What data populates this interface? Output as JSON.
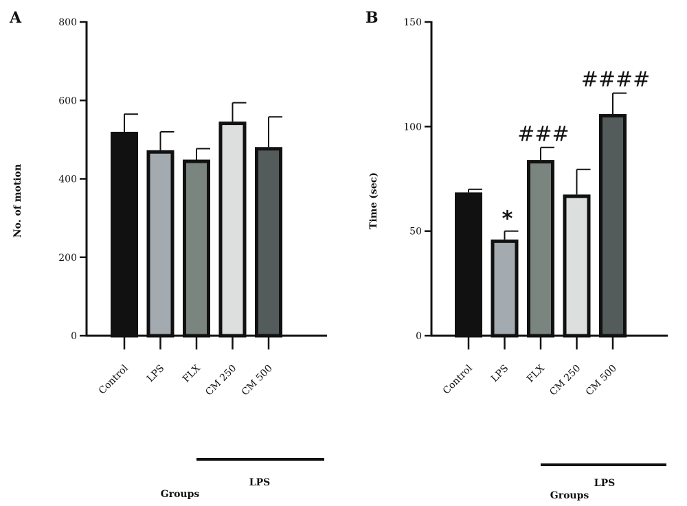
{
  "chart_data": [
    {
      "panel_label": "A",
      "type": "bar",
      "categories": [
        "Control",
        "LPS",
        "FLX",
        "CM 250",
        "CM 500"
      ],
      "values": [
        520,
        473,
        449,
        546,
        481
      ],
      "errors": [
        45,
        47,
        28,
        48,
        77
      ],
      "annotations": [
        "",
        "",
        "",
        "",
        ""
      ],
      "bar_colors": [
        "#111111",
        "#a3aab0",
        "#7a8580",
        "#dcdfdd",
        "#535b5b"
      ],
      "ylabel": "No. of motion",
      "xlabel": "Groups",
      "ylim": [
        0,
        800
      ],
      "yticks": [
        0,
        200,
        400,
        600,
        800
      ],
      "bracket_label": "LPS"
    },
    {
      "panel_label": "B",
      "type": "bar",
      "categories": [
        "Control",
        "LPS",
        "FLX",
        "CM 250",
        "CM 500"
      ],
      "values": [
        68.5,
        46,
        84,
        67.5,
        106
      ],
      "errors": [
        1.5,
        4,
        6,
        12,
        10
      ],
      "annotations": [
        "",
        "*",
        "###",
        "",
        "####"
      ],
      "bar_colors": [
        "#111111",
        "#a3aab0",
        "#7a8580",
        "#dcdfdd",
        "#535b5b"
      ],
      "ylabel": "Time (sec)",
      "xlabel": "Groups",
      "ylim": [
        0,
        150
      ],
      "yticks": [
        0,
        50,
        100,
        150
      ],
      "bracket_label": "LPS"
    }
  ]
}
